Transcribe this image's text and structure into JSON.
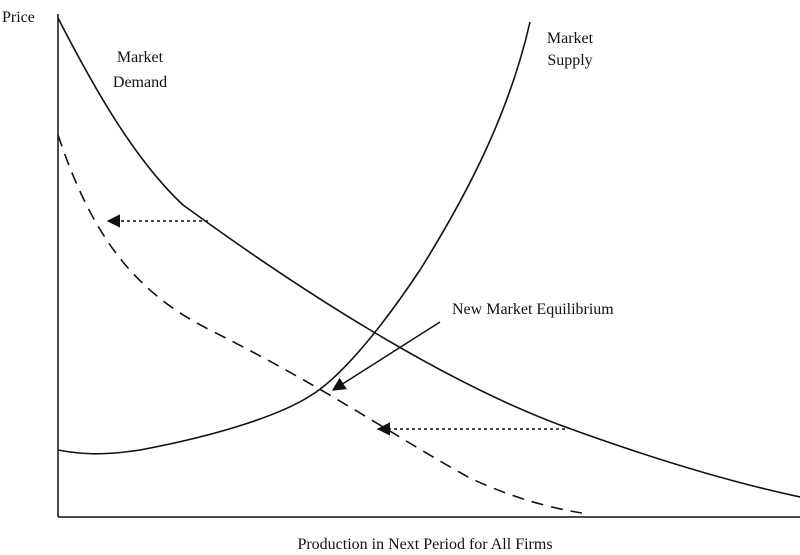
{
  "axes": {
    "y_label": "Price",
    "x_label": "Production in Next Period for All Firms"
  },
  "curves": {
    "demand": {
      "label_lines": [
        "Market",
        "Demand"
      ]
    },
    "supply": {
      "label_lines": [
        "Market",
        "Supply"
      ]
    }
  },
  "annotation": {
    "label": "New Market Equilibrium"
  }
}
